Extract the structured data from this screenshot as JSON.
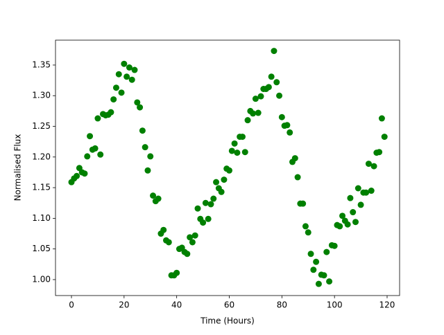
{
  "chart_data": {
    "type": "scatter",
    "xlabel": "Time (Hours)",
    "ylabel": "Normalised Flux",
    "x": [
      0,
      1,
      2,
      3,
      4,
      5,
      6,
      7,
      8,
      9,
      10,
      11,
      12,
      13,
      14,
      15,
      16,
      17,
      18,
      19,
      20,
      21,
      22,
      23,
      24,
      25,
      26,
      27,
      28,
      29,
      30,
      31,
      32,
      33,
      34,
      35,
      36,
      37,
      38,
      39,
      40,
      41,
      42,
      43,
      44,
      45,
      46,
      47,
      48,
      49,
      50,
      51,
      52,
      53,
      54,
      55,
      56,
      57,
      58,
      59,
      60,
      61,
      62,
      63,
      64,
      65,
      66,
      67,
      68,
      69,
      70,
      71,
      72,
      73,
      74,
      75,
      76,
      77,
      78,
      79,
      80,
      81,
      82,
      83,
      84,
      85,
      86,
      87,
      88,
      89,
      90,
      91,
      92,
      93,
      94,
      95,
      96,
      97,
      98,
      99,
      100,
      101,
      102,
      103,
      104,
      105,
      106,
      107,
      108,
      109,
      110,
      111,
      112,
      113,
      114,
      115,
      116,
      117,
      118,
      119
    ],
    "values": [
      1.159,
      1.165,
      1.169,
      1.182,
      1.175,
      1.173,
      1.201,
      1.234,
      1.212,
      1.214,
      1.263,
      1.204,
      1.27,
      1.268,
      1.269,
      1.273,
      1.294,
      1.313,
      1.335,
      1.305,
      1.352,
      1.331,
      1.346,
      1.326,
      1.342,
      1.289,
      1.281,
      1.243,
      1.216,
      1.178,
      1.201,
      1.137,
      1.128,
      1.132,
      1.075,
      1.081,
      1.064,
      1.061,
      1.007,
      1.007,
      1.011,
      1.05,
      1.052,
      1.045,
      1.042,
      1.069,
      1.061,
      1.072,
      1.116,
      1.099,
      1.093,
      1.125,
      1.099,
      1.123,
      1.132,
      1.159,
      1.149,
      1.143,
      1.163,
      1.181,
      1.178,
      1.21,
      1.222,
      1.207,
      1.233,
      1.233,
      1.208,
      1.26,
      1.275,
      1.271,
      1.295,
      1.272,
      1.299,
      1.311,
      1.311,
      1.314,
      1.331,
      1.373,
      1.322,
      1.3,
      1.265,
      1.251,
      1.252,
      1.24,
      1.192,
      1.198,
      1.167,
      1.124,
      1.124,
      1.087,
      1.077,
      1.042,
      1.016,
      1.029,
      0.993,
      1.008,
      1.007,
      1.045,
      0.997,
      1.056,
      1.055,
      1.089,
      1.087,
      1.104,
      1.096,
      1.09,
      1.133,
      1.11,
      1.094,
      1.149,
      1.122,
      1.142,
      1.142,
      1.189,
      1.145,
      1.185,
      1.207,
      1.208,
      1.263,
      1.233
    ],
    "color": "#008000",
    "xlim": [
      -6.07,
      124.75
    ],
    "xticks": [
      0,
      20,
      40,
      60,
      80,
      100,
      120
    ],
    "ylim": [
      0.974,
      1.3906
    ],
    "yticks": [
      {
        "value": 1.0,
        "label": "1.00"
      },
      1.05,
      {
        "value": 1.1,
        "label": "1.10"
      },
      1.15,
      {
        "value": 1.2,
        "label": "1.20"
      },
      1.25,
      {
        "value": 1.3,
        "label": "1.30"
      },
      1.35
    ],
    "grid": false
  }
}
